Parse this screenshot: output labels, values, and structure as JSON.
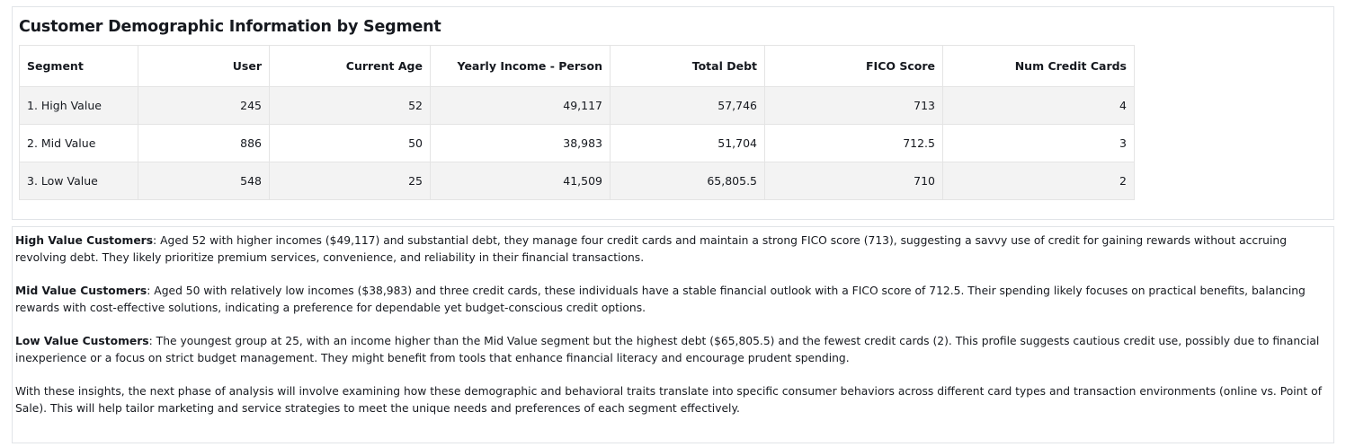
{
  "table": {
    "title": "Customer Demographic Information by Segment",
    "columns": [
      "Segment",
      "User",
      "Current Age",
      "Yearly Income - Person",
      "Total Debt",
      "FICO Score",
      "Num Credit Cards"
    ],
    "rows": [
      [
        "1. High Value",
        "245",
        "52",
        "49,117",
        "57,746",
        "713",
        "4"
      ],
      [
        "2. Mid Value",
        "886",
        "50",
        "38,983",
        "51,704",
        "712.5",
        "3"
      ],
      [
        "3. Low Value",
        "548",
        "25",
        "41,509",
        "65,805.5",
        "710",
        "2"
      ]
    ]
  },
  "narrative": {
    "high": {
      "label": "High Value Customers",
      "text": ": Aged 52 with higher incomes ($49,117) and substantial debt, they manage four credit cards and maintain a strong FICO score (713), suggesting a savvy use of credit for gaining rewards without accruing revolving debt. They likely prioritize premium services, convenience, and reliability in their financial transactions."
    },
    "mid": {
      "label": "Mid Value Customers",
      "text": ": Aged 50 with relatively low incomes ($38,983) and three credit cards, these individuals have a stable financial outlook with a FICO score of 712.5. Their spending likely focuses on practical benefits, balancing rewards with cost-effective solutions, indicating a preference for dependable yet budget-conscious credit options."
    },
    "low": {
      "label": "Low Value Customers",
      "text": ": The youngest group at 25, with an income higher than the Mid Value segment but the highest debt ($65,805.5) and the fewest credit cards (2). This profile suggests cautious credit use, possibly due to financial inexperience or a focus on strict budget management. They might benefit from tools that enhance financial literacy and encourage prudent spending."
    },
    "conclusion": "With these insights, the next phase of analysis will involve examining how these demographic and behavioral traits translate into specific consumer behaviors across different card types and transaction environments (online vs. Point of Sale). This will help tailor marketing and service strategies to meet the unique needs and preferences of each segment effectively."
  }
}
